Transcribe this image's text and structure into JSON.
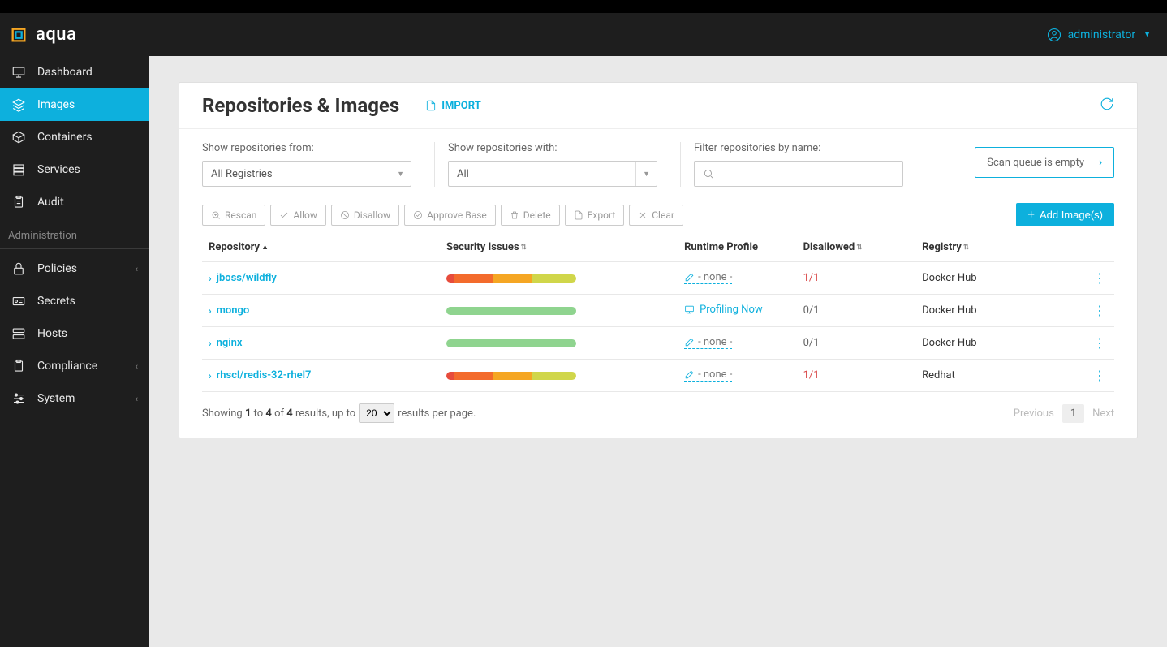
{
  "brand": "aqua",
  "user": "administrator",
  "sidebar": {
    "items": [
      {
        "label": "Dashboard",
        "icon": "monitor"
      },
      {
        "label": "Images",
        "icon": "layers",
        "active": true
      },
      {
        "label": "Containers",
        "icon": "box"
      },
      {
        "label": "Services",
        "icon": "stack"
      },
      {
        "label": "Audit",
        "icon": "clipboard"
      }
    ],
    "section_label": "Administration",
    "admin_items": [
      {
        "label": "Policies",
        "icon": "lock",
        "expandable": true
      },
      {
        "label": "Secrets",
        "icon": "card"
      },
      {
        "label": "Hosts",
        "icon": "server"
      },
      {
        "label": "Compliance",
        "icon": "paste",
        "expandable": true
      },
      {
        "label": "System",
        "icon": "sliders",
        "expandable": true
      }
    ]
  },
  "page": {
    "title": "Repositories & Images",
    "import_label": "IMPORT",
    "filters": {
      "from_label": "Show repositories from:",
      "from_value": "All Registries",
      "with_label": "Show repositories with:",
      "with_value": "All",
      "name_label": "Filter repositories by name:"
    },
    "scan_queue": "Scan queue is empty",
    "toolbar": {
      "rescan": "Rescan",
      "allow": "Allow",
      "disallow": "Disallow",
      "approve": "Approve Base",
      "delete": "Delete",
      "export": "Export",
      "clear": "Clear",
      "add": "Add Image(s)"
    },
    "columns": {
      "repo": "Repository",
      "sec": "Security Issues",
      "rt": "Runtime Profile",
      "dis": "Disallowed",
      "reg": "Registry"
    },
    "rows": [
      {
        "repo": "jboss/wildfly",
        "severity": [
          {
            "color": "#e74c3c",
            "pct": 6
          },
          {
            "color": "#f36b2c",
            "pct": 30
          },
          {
            "color": "#f5a623",
            "pct": 30
          },
          {
            "color": "#d0d64a",
            "pct": 34
          }
        ],
        "runtime": {
          "type": "none",
          "text": "- none -"
        },
        "disallowed": {
          "text": "1/1",
          "red": true
        },
        "registry": "Docker Hub"
      },
      {
        "repo": "mongo",
        "severity": [
          {
            "color": "#8fd48f",
            "pct": 100
          }
        ],
        "runtime": {
          "type": "profiling",
          "text": "Profiling Now"
        },
        "disallowed": {
          "text": "0/1",
          "red": false
        },
        "registry": "Docker Hub"
      },
      {
        "repo": "nginx",
        "severity": [
          {
            "color": "#8fd48f",
            "pct": 100
          }
        ],
        "runtime": {
          "type": "none",
          "text": "- none -"
        },
        "disallowed": {
          "text": "0/1",
          "red": false
        },
        "registry": "Docker Hub"
      },
      {
        "repo": "rhscl/redis-32-rhel7",
        "severity": [
          {
            "color": "#e74c3c",
            "pct": 6
          },
          {
            "color": "#f36b2c",
            "pct": 30
          },
          {
            "color": "#f5a623",
            "pct": 30
          },
          {
            "color": "#d0d64a",
            "pct": 34
          }
        ],
        "runtime": {
          "type": "none",
          "text": "- none -"
        },
        "disallowed": {
          "text": "1/1",
          "red": true
        },
        "registry": "Redhat"
      }
    ],
    "pager": {
      "showing_a": "Showing ",
      "from": "1",
      "to_word": " to ",
      "to": "4",
      "of_word": " of ",
      "total": "4",
      "results_upto": " results, up to ",
      "per_page": "20",
      "tail": " results per page.",
      "prev": "Previous",
      "page": "1",
      "next": "Next"
    }
  },
  "colors": {
    "accent": "#0db0dd",
    "sidebar_bg": "#1e1e1e",
    "main_bg": "#e9e9e9",
    "red": "#d94a4a"
  }
}
